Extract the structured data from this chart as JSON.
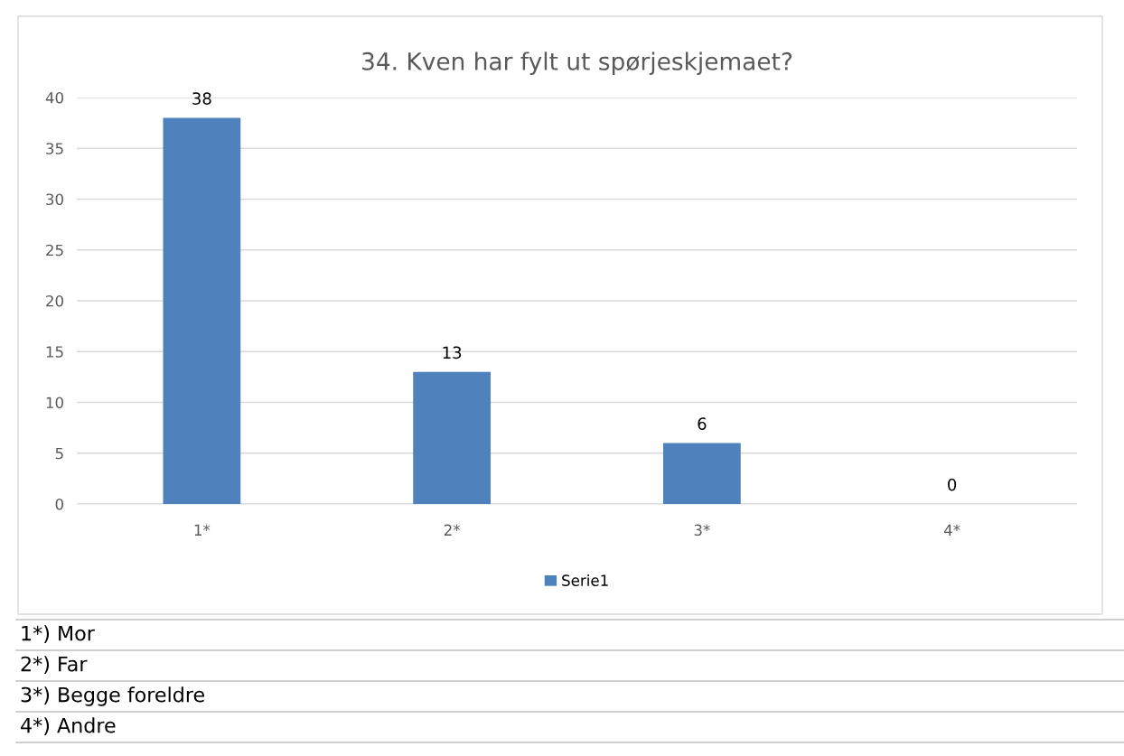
{
  "chart_data": {
    "type": "bar",
    "title": "34. Kven har fylt ut spørjeskjemaet?",
    "categories": [
      "1*",
      "2*",
      "3*",
      "4*"
    ],
    "series": [
      {
        "name": "Serie1",
        "color": "#4f81bd",
        "values": [
          38,
          13,
          6,
          0
        ]
      }
    ],
    "ylim": [
      0,
      40
    ],
    "yticks": [
      0,
      5,
      10,
      15,
      20,
      25,
      30,
      35,
      40
    ],
    "grid": "y",
    "legend": "bottom",
    "data_labels": true,
    "annotations": [
      "1*) Mor",
      "2*) Far",
      "3*) Begge foreldre",
      "4*) Andre"
    ]
  }
}
